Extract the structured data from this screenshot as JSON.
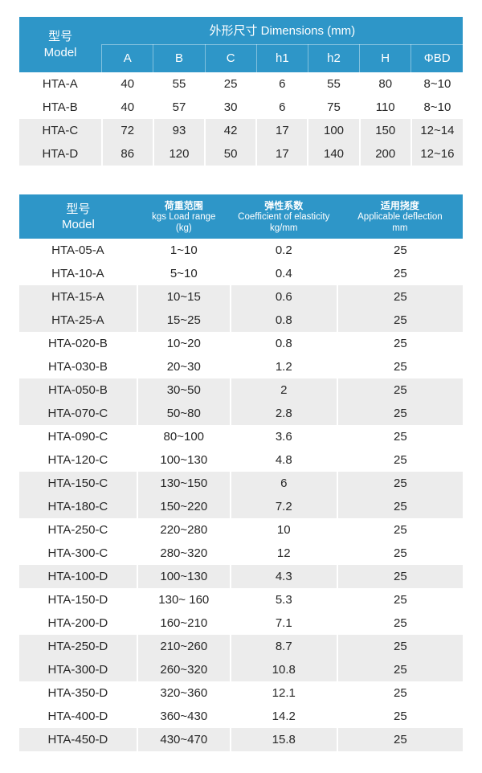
{
  "colors": {
    "header_blue": "#2E96C8",
    "stripe_gray": "#ECECEC",
    "header_text": "#FFFFFF",
    "body_text": "#262626"
  },
  "dimensions_table": {
    "model_header_zh": "型号",
    "model_header_en": "Model",
    "group_header": "外形尺寸 Dimensions (mm)",
    "columns": [
      "A",
      "B",
      "C",
      "h1",
      "h2",
      "H",
      "ΦBD"
    ],
    "rows": [
      {
        "model": "HTA-A",
        "values": [
          "40",
          "55",
          "25",
          "6",
          "55",
          "80",
          "8~10"
        ],
        "shaded": false
      },
      {
        "model": "HTA-B",
        "values": [
          "40",
          "57",
          "30",
          "6",
          "75",
          "110",
          "8~10"
        ],
        "shaded": false
      },
      {
        "model": "HTA-C",
        "values": [
          "72",
          "93",
          "42",
          "17",
          "100",
          "150",
          "12~14"
        ],
        "shaded": true
      },
      {
        "model": "HTA-D",
        "values": [
          "86",
          "120",
          "50",
          "17",
          "140",
          "200",
          "12~16"
        ],
        "shaded": true
      }
    ]
  },
  "specs_table": {
    "headers": {
      "model": {
        "zh": "型号",
        "en": "Model"
      },
      "load": {
        "zh": "荷重范围",
        "en": "kgs Load range",
        "unit": "(kg)"
      },
      "coefficient": {
        "zh": "弹性系数",
        "en": "Coefficient of elasticity",
        "unit": "kg/mm"
      },
      "deflection": {
        "zh": "适用挠度",
        "en": "Applicable deflection",
        "unit": "mm"
      }
    },
    "rows": [
      {
        "model": "HTA-05-A",
        "load_range": "1~10",
        "coefficient": "0.2",
        "deflection": "25",
        "shaded": false
      },
      {
        "model": "HTA-10-A",
        "load_range": "5~10",
        "coefficient": "0.4",
        "deflection": "25",
        "shaded": false
      },
      {
        "model": "HTA-15-A",
        "load_range": "10~15",
        "coefficient": "0.6",
        "deflection": "25",
        "shaded": true
      },
      {
        "model": "HTA-25-A",
        "load_range": "15~25",
        "coefficient": "0.8",
        "deflection": "25",
        "shaded": true
      },
      {
        "model": "HTA-020-B",
        "load_range": "10~20",
        "coefficient": "0.8",
        "deflection": "25",
        "shaded": false
      },
      {
        "model": "HTA-030-B",
        "load_range": "20~30",
        "coefficient": "1.2",
        "deflection": "25",
        "shaded": false
      },
      {
        "model": "HTA-050-B",
        "load_range": "30~50",
        "coefficient": "2",
        "deflection": "25",
        "shaded": true
      },
      {
        "model": "HTA-070-C",
        "load_range": "50~80",
        "coefficient": "2.8",
        "deflection": "25",
        "shaded": true
      },
      {
        "model": "HTA-090-C",
        "load_range": "80~100",
        "coefficient": "3.6",
        "deflection": "25",
        "shaded": false
      },
      {
        "model": "HTA-120-C",
        "load_range": "100~130",
        "coefficient": "4.8",
        "deflection": "25",
        "shaded": false
      },
      {
        "model": "HTA-150-C",
        "load_range": "130~150",
        "coefficient": "6",
        "deflection": "25",
        "shaded": true
      },
      {
        "model": "HTA-180-C",
        "load_range": "150~220",
        "coefficient": "7.2",
        "deflection": "25",
        "shaded": true
      },
      {
        "model": "HTA-250-C",
        "load_range": "220~280",
        "coefficient": "10",
        "deflection": "25",
        "shaded": false
      },
      {
        "model": "HTA-300-C",
        "load_range": "280~320",
        "coefficient": "12",
        "deflection": "25",
        "shaded": false
      },
      {
        "model": "HTA-100-D",
        "load_range": "100~130",
        "coefficient": "4.3",
        "deflection": "25",
        "shaded": true
      },
      {
        "model": "HTA-150-D",
        "load_range": "130~ 160",
        "coefficient": "5.3",
        "deflection": "25",
        "shaded": false
      },
      {
        "model": "HTA-200-D",
        "load_range": "160~210",
        "coefficient": "7.1",
        "deflection": "25",
        "shaded": false
      },
      {
        "model": "HTA-250-D",
        "load_range": "210~260",
        "coefficient": "8.7",
        "deflection": "25",
        "shaded": true
      },
      {
        "model": "HTA-300-D",
        "load_range": "260~320",
        "coefficient": "10.8",
        "deflection": "25",
        "shaded": true
      },
      {
        "model": "HTA-350-D",
        "load_range": "320~360",
        "coefficient": "12.1",
        "deflection": "25",
        "shaded": false
      },
      {
        "model": "HTA-400-D",
        "load_range": "360~430",
        "coefficient": "14.2",
        "deflection": "25",
        "shaded": false
      },
      {
        "model": "HTA-450-D",
        "load_range": "430~470",
        "coefficient": "15.8",
        "deflection": "25",
        "shaded": true
      }
    ]
  }
}
